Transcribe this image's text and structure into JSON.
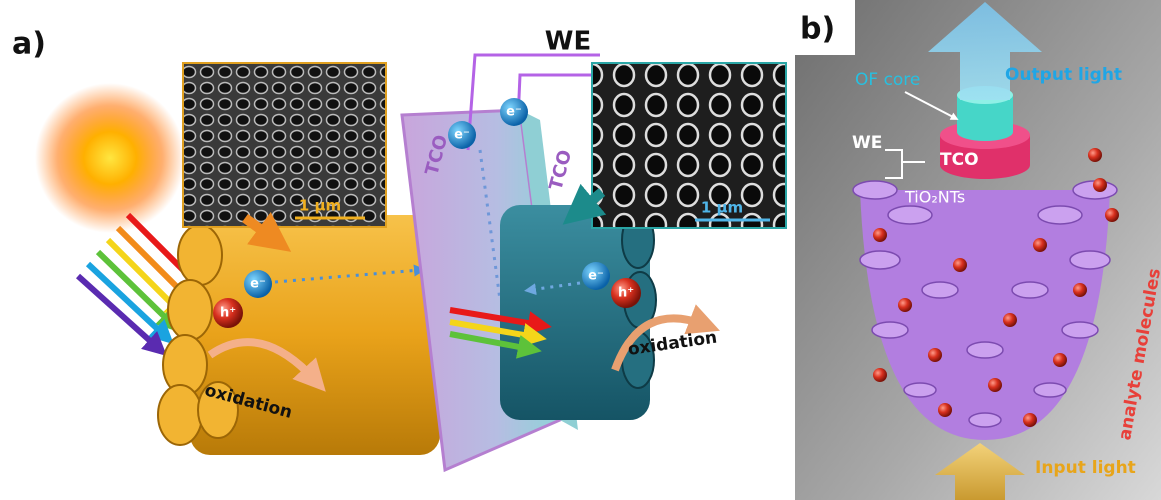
{
  "panel_a": {
    "label": "a)",
    "we_label": "WE",
    "sem_left_scale": "1 µm",
    "sem_right_scale": "1 µm",
    "tco_left": "TCO",
    "tco_right": "TCO",
    "electrons": [
      "e⁻",
      "e⁻",
      "e⁻",
      "e⁻"
    ],
    "holes": [
      "h⁺",
      "h⁺"
    ],
    "oxidation_left": "oxidation",
    "oxidation_right": "oxidation"
  },
  "panel_b": {
    "label": "b)",
    "of_core": "OF core",
    "output_light": "Output light",
    "we": "WE",
    "tco": "TCO",
    "tio2_nts": "TiO₂NTs",
    "analyte_molecules": "analyte molecules",
    "input_light": "Input light"
  }
}
